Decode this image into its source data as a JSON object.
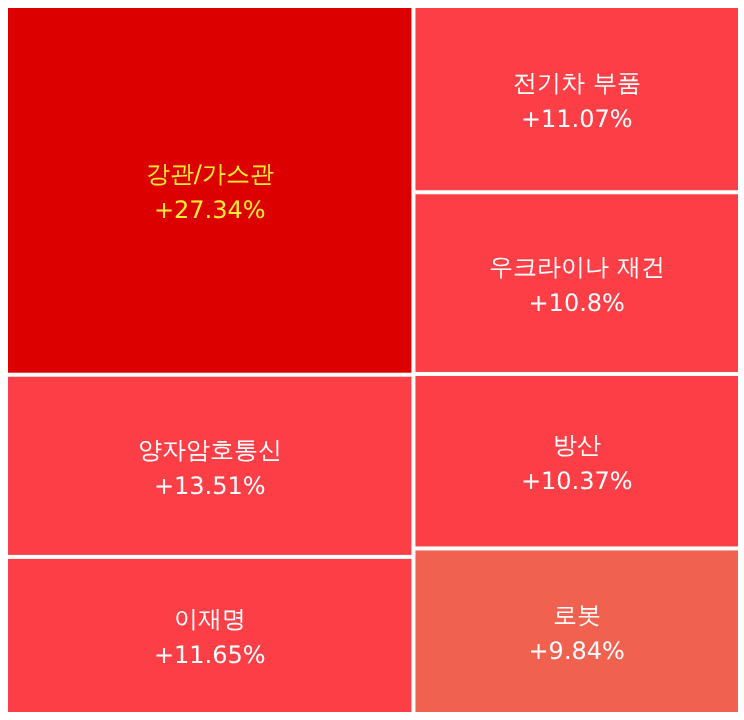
{
  "chart_data": {
    "type": "other",
    "categories": [
      "강관/가스관",
      "양자암호통신",
      "이재명",
      "전기차 부품",
      "우크라이나 재건",
      "방산",
      "로봇"
    ],
    "values": [
      27.34,
      13.51,
      11.65,
      11.07,
      10.8,
      10.37,
      9.84
    ],
    "value_labels": [
      "+27.34%",
      "+13.51%",
      "+11.65%",
      "+11.07%",
      "+10.8%",
      "+10.37%",
      "+9.84%"
    ],
    "colors": [
      "#dd0000",
      "#fc3f47",
      "#fc3f47",
      "#fc3f47",
      "#fc3f47",
      "#fc3f47",
      "#f0614f"
    ]
  }
}
